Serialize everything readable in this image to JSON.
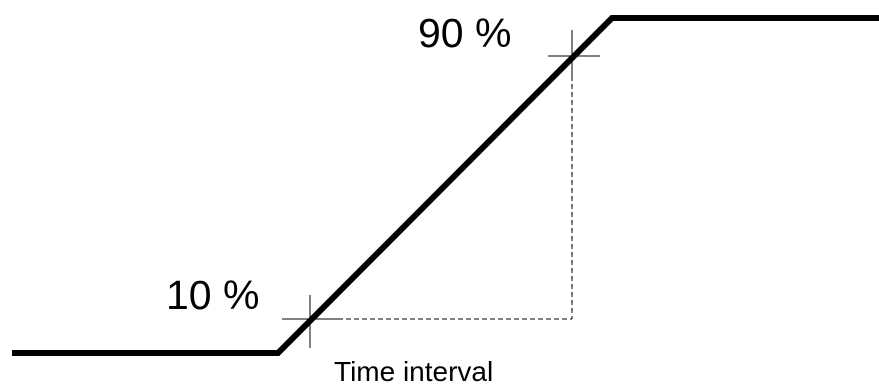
{
  "labels": {
    "high_threshold": "90 %",
    "low_threshold": "10 %",
    "interval": "Time interval"
  },
  "colors": {
    "line": "#000000",
    "background": "#ffffff"
  }
}
